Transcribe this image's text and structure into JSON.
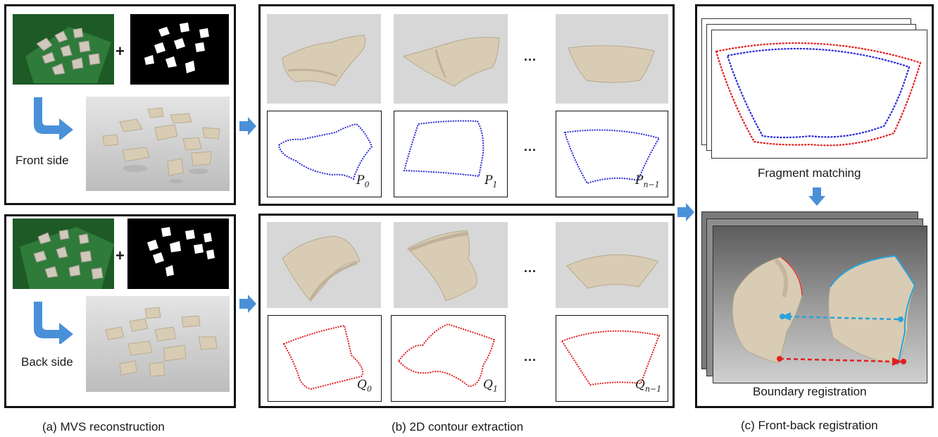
{
  "panels": {
    "mvs": {
      "caption": "(a) MVS reconstruction",
      "front_label": "Front side",
      "back_label": "Back side",
      "plus": "+"
    },
    "contour": {
      "caption": "(b) 2D contour extraction",
      "ellipsis": "...",
      "front_contours": [
        {
          "sym": "P",
          "sub": "0"
        },
        {
          "sym": "P",
          "sub": "1"
        },
        {
          "sym": "P",
          "sub": "n−1"
        }
      ],
      "back_contours": [
        {
          "sym": "Q",
          "sub": "0"
        },
        {
          "sym": "Q",
          "sub": "1"
        },
        {
          "sym": "Q",
          "sub": "n−1"
        }
      ]
    },
    "registration": {
      "caption": "(c) Front-back registration",
      "matching_label": "Fragment matching",
      "boundary_label": "Boundary registration"
    }
  },
  "colors": {
    "front_contour": "#2b2bd9",
    "back_contour": "#e02020",
    "arrow": "#4a90d9",
    "fragment": "#d9ccb4",
    "mat_green": "#1f6b2a"
  }
}
